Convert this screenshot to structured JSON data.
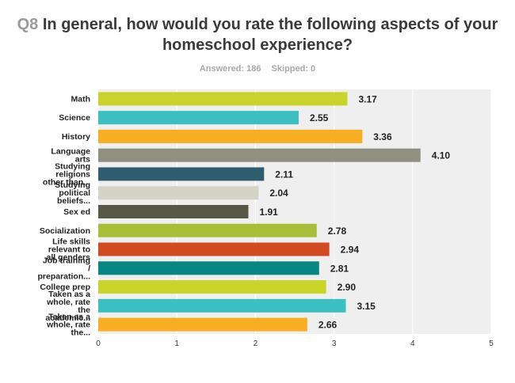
{
  "header": {
    "question_number": "Q8",
    "question_line1": "In general, how would you rate the following aspects of your",
    "question_line2": "homeschool experience?",
    "answered": "Answered: 186",
    "skipped": "Skipped: 0"
  },
  "chart_data": {
    "type": "bar",
    "orientation": "horizontal",
    "categories": [
      [
        "Math"
      ],
      [
        "Science"
      ],
      [
        "History"
      ],
      [
        "Language",
        "arts"
      ],
      [
        "Studying",
        "religions",
        "other than..."
      ],
      [
        "Studying",
        "political",
        "beliefs..."
      ],
      [
        "Sex ed"
      ],
      [
        "Socialization"
      ],
      [
        "Life skills",
        "relevant to",
        "all genders"
      ],
      [
        "Job training",
        "/",
        "preparation..."
      ],
      [
        "College prep"
      ],
      [
        "Taken as a",
        "whole, rate",
        "the",
        "academic..."
      ],
      [
        "Taken as a",
        "whole, rate",
        "the..."
      ]
    ],
    "values": [
      3.17,
      2.55,
      3.36,
      4.1,
      2.11,
      2.04,
      1.91,
      2.78,
      2.94,
      2.81,
      2.9,
      3.15,
      2.66
    ],
    "value_labels": [
      "3.17",
      "2.55",
      "3.36",
      "4.10",
      "2.11",
      "2.04",
      "1.91",
      "2.78",
      "2.94",
      "2.81",
      "2.90",
      "3.15",
      "2.66"
    ],
    "colors": [
      "#c9d42a",
      "#3bbfc0",
      "#f8ae22",
      "#8f8f82",
      "#2f5d6d",
      "#d3d3c6",
      "#575746",
      "#a8be39",
      "#d24a1f",
      "#078583",
      "#c9d42a",
      "#3bbfc0",
      "#f8ae22"
    ],
    "xlim": [
      0,
      5
    ],
    "xticks": [
      "0",
      "1",
      "2",
      "3",
      "4",
      "5"
    ],
    "grid": true,
    "plot_background": "#efefef"
  }
}
